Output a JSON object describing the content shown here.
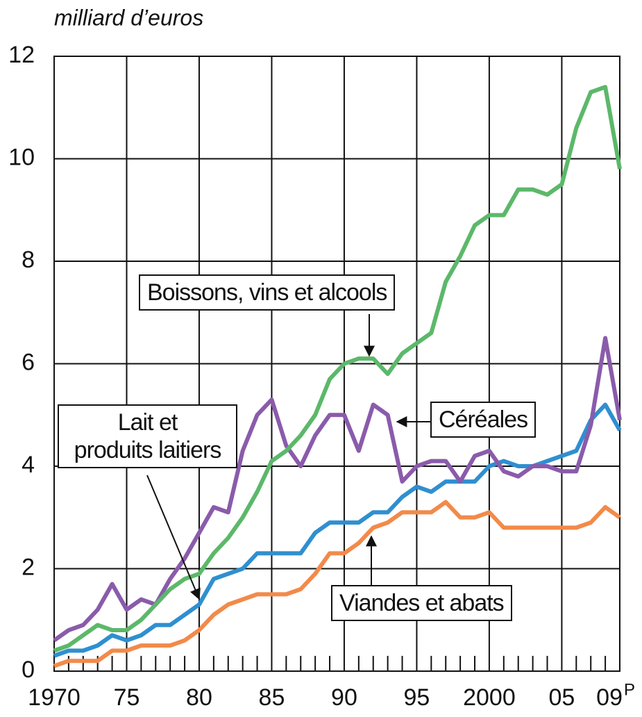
{
  "chart_data": {
    "type": "line",
    "y_unit_label": "milliard d’euros",
    "x": [
      1970,
      1971,
      1972,
      1973,
      1974,
      1975,
      1976,
      1977,
      1978,
      1979,
      1980,
      1981,
      1982,
      1983,
      1984,
      1985,
      1986,
      1987,
      1988,
      1989,
      1990,
      1991,
      1992,
      1993,
      1994,
      1995,
      1996,
      1997,
      1998,
      1999,
      2000,
      2001,
      2002,
      2003,
      2004,
      2005,
      2006,
      2007,
      2008,
      2009
    ],
    "series": [
      {
        "name": "Boissons, vins et alcools",
        "color": "#5cb86a",
        "values": [
          0.4,
          0.5,
          0.7,
          0.9,
          0.8,
          0.8,
          1.0,
          1.3,
          1.6,
          1.8,
          1.9,
          2.3,
          2.6,
          3.0,
          3.5,
          4.1,
          4.3,
          4.6,
          5.0,
          5.7,
          6.0,
          6.1,
          6.1,
          5.8,
          6.2,
          6.4,
          6.6,
          7.6,
          8.1,
          8.7,
          8.9,
          8.9,
          9.4,
          9.4,
          9.3,
          9.5,
          10.6,
          11.3,
          11.4,
          9.8
        ]
      },
      {
        "name": "Céréales",
        "color": "#8a5bab",
        "values": [
          0.6,
          0.8,
          0.9,
          1.2,
          1.7,
          1.2,
          1.4,
          1.3,
          1.8,
          2.2,
          2.7,
          3.2,
          3.1,
          4.3,
          5.0,
          5.3,
          4.4,
          4.0,
          4.6,
          5.0,
          5.0,
          4.3,
          5.2,
          5.0,
          3.7,
          4.0,
          4.1,
          4.1,
          3.7,
          4.2,
          4.3,
          3.9,
          3.8,
          4.0,
          4.0,
          3.9,
          3.9,
          4.8,
          6.5,
          4.9
        ]
      },
      {
        "name": "Lait et\nproduits laitiers",
        "color": "#2f8fd0",
        "values": [
          0.3,
          0.4,
          0.4,
          0.5,
          0.7,
          0.6,
          0.7,
          0.9,
          0.9,
          1.1,
          1.3,
          1.8,
          1.9,
          2.0,
          2.3,
          2.3,
          2.3,
          2.3,
          2.7,
          2.9,
          2.9,
          2.9,
          3.1,
          3.1,
          3.4,
          3.6,
          3.5,
          3.7,
          3.7,
          3.7,
          4.0,
          4.1,
          4.0,
          4.0,
          4.1,
          4.2,
          4.3,
          4.9,
          5.2,
          4.7
        ]
      },
      {
        "name": "Viandes et abats",
        "color": "#f28a4a",
        "values": [
          0.1,
          0.2,
          0.2,
          0.2,
          0.4,
          0.4,
          0.5,
          0.5,
          0.5,
          0.6,
          0.8,
          1.1,
          1.3,
          1.4,
          1.5,
          1.5,
          1.5,
          1.6,
          1.9,
          2.3,
          2.3,
          2.5,
          2.8,
          2.9,
          3.1,
          3.1,
          3.1,
          3.3,
          3.0,
          3.0,
          3.1,
          2.8,
          2.8,
          2.8,
          2.8,
          2.8,
          2.8,
          2.9,
          3.2,
          3.0
        ]
      }
    ],
    "xlim": [
      1970,
      2009
    ],
    "xticks": [
      1970,
      {
        "value": 1975,
        "label": "75"
      },
      {
        "value": 1980,
        "label": "80"
      },
      {
        "value": 1985,
        "label": "85"
      },
      {
        "value": 1990,
        "label": "90"
      },
      {
        "value": 1995,
        "label": "95"
      },
      2000,
      {
        "value": 2005,
        "label": "05"
      },
      {
        "value": 2009,
        "label": "09"
      }
    ],
    "last_xtick_suffix": "P",
    "minor_xticks": [
      1971,
      1972,
      1973,
      1974,
      1976,
      1977,
      1978,
      1979,
      1981,
      1982,
      1983,
      1984,
      1986,
      1987,
      1988,
      1989,
      1991,
      1992,
      1993,
      1994,
      1996,
      1997,
      1998,
      1999,
      2001,
      2002,
      2003,
      2004,
      2006,
      2007,
      2008
    ],
    "ylim": [
      0,
      12
    ],
    "yticks": [
      0,
      2,
      4,
      6,
      8,
      10,
      12
    ],
    "grid": true
  }
}
